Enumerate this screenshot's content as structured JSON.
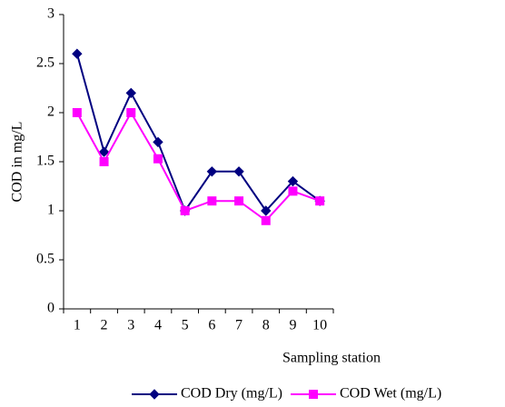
{
  "chart_data": {
    "type": "line",
    "x_label": "Sampling station",
    "y_label": "COD in mg/L",
    "categories": [
      "1",
      "2",
      "3",
      "4",
      "5",
      "6",
      "7",
      "8",
      "9",
      "10"
    ],
    "series": [
      {
        "name": "COD Dry (mg/L)",
        "color": "#000080",
        "marker": "diamond",
        "values": [
          2.6,
          1.6,
          2.2,
          1.7,
          1.0,
          1.4,
          1.4,
          1.0,
          1.3,
          1.1
        ]
      },
      {
        "name": "COD Wet (mg/L)",
        "color": "#ff00ff",
        "marker": "square",
        "values": [
          2.0,
          1.5,
          2.0,
          1.53,
          1.0,
          1.1,
          1.1,
          0.9,
          1.2,
          1.1
        ]
      }
    ],
    "ylim": [
      0,
      3
    ],
    "yticks": [
      0,
      0.5,
      1,
      1.5,
      2,
      2.5,
      3
    ],
    "grid": false,
    "legend": "bottom"
  }
}
